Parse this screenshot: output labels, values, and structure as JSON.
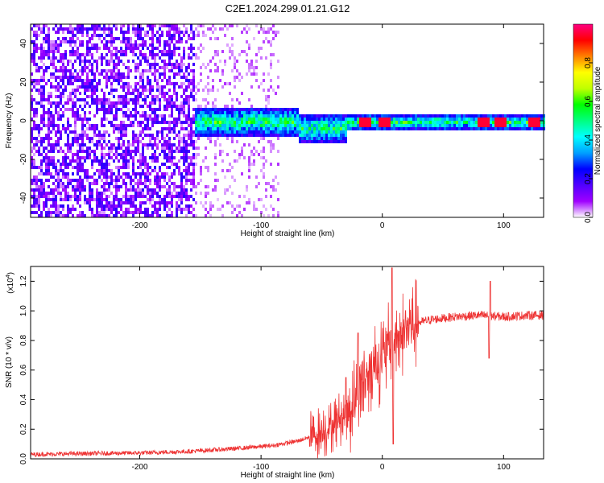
{
  "figure_title": "C2E1.2024.299.01.21.G12",
  "chart_data": [
    {
      "type": "heatmap",
      "title": "C2E1.2024.299.01.21.G12",
      "xlabel": "Height of straight line (km)",
      "ylabel": "Frequency (Hz)",
      "xlim": [
        -290,
        133
      ],
      "ylim": [
        -50,
        50
      ],
      "xticks": [
        -200,
        -100,
        0,
        100
      ],
      "yticks": [
        -40,
        -20,
        0,
        20,
        40
      ],
      "grid": false,
      "colorbar": {
        "label": "Normalized spectral amplitude",
        "range": [
          0,
          1
        ],
        "ticks": [
          0.0,
          0.2,
          0.4,
          0.6,
          0.8
        ],
        "colormap": [
          "#ffffff",
          "#a000ff",
          "#5000ff",
          "#0000ff",
          "#00a0ff",
          "#00ffff",
          "#00ff80",
          "#00ff00",
          "#c0ff00",
          "#ffff00",
          "#ff8000",
          "#ff0000",
          "#ff0080"
        ]
      },
      "regions": [
        {
          "name": "noise",
          "x_range": [
            -290,
            -155
          ],
          "y_range": [
            -50,
            50
          ],
          "amplitude": 0.15
        },
        {
          "name": "noise-sparse",
          "x_range": [
            -155,
            -85
          ],
          "y_range": [
            -50,
            50
          ],
          "amplitude": 0.05
        },
        {
          "name": "signal-band",
          "x_range": [
            -155,
            133
          ],
          "y_center": 0,
          "half_width": 4,
          "amplitude": 0.5
        },
        {
          "name": "signal-peaks",
          "x_values": [
            -15,
            0,
            83,
            97,
            125
          ],
          "y": 0,
          "amplitude": 0.95
        }
      ]
    },
    {
      "type": "line",
      "xlabel": "Height of straight line (km)",
      "ylabel": "SNR (10 * v/v)",
      "y_multiplier": "(x10^4)",
      "y_multiplier_base": "(x10",
      "y_multiplier_exp": "4",
      "xlim": [
        -290,
        133
      ],
      "ylim": [
        0,
        1.3
      ],
      "xticks": [
        -200,
        -100,
        0,
        100
      ],
      "yticks": [
        0.0,
        0.2,
        0.4,
        0.6,
        0.8,
        1.0,
        1.2
      ],
      "grid": false,
      "series": [
        {
          "color": "#ee3333",
          "points": [
            [
              -290,
              0.03
            ],
            [
              -250,
              0.035
            ],
            [
              -200,
              0.04
            ],
            [
              -160,
              0.05
            ],
            [
              -120,
              0.07
            ],
            [
              -90,
              0.09
            ],
            [
              -70,
              0.12
            ],
            [
              -55,
              0.16
            ],
            [
              -45,
              0.2
            ],
            [
              -40,
              0.24
            ],
            [
              -35,
              0.27
            ],
            [
              -30,
              0.3
            ],
            [
              -25,
              0.36
            ],
            [
              -20,
              0.45
            ],
            [
              -15,
              0.55
            ],
            [
              -10,
              0.6
            ],
            [
              -5,
              0.65
            ],
            [
              0,
              0.68
            ],
            [
              5,
              0.74
            ],
            [
              10,
              0.8
            ],
            [
              15,
              0.84
            ],
            [
              20,
              0.87
            ],
            [
              25,
              0.9
            ],
            [
              30,
              0.92
            ],
            [
              40,
              0.94
            ],
            [
              60,
              0.96
            ],
            [
              80,
              0.97
            ],
            [
              100,
              0.96
            ],
            [
              120,
              0.97
            ],
            [
              133,
              0.97
            ]
          ],
          "spikes": [
            [
              8,
              1.29
            ],
            [
              9,
              0.1
            ],
            [
              89,
              1.2
            ],
            [
              88,
              0.68
            ],
            [
              -30,
              0.55
            ],
            [
              -20,
              0.85
            ]
          ]
        }
      ]
    }
  ]
}
